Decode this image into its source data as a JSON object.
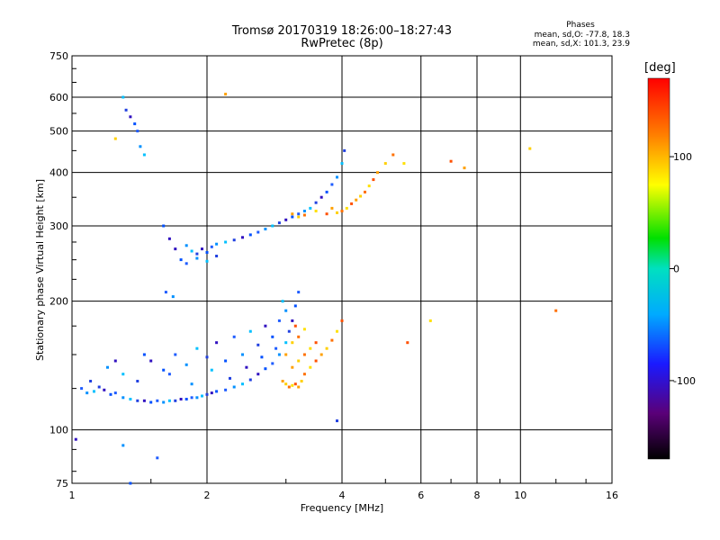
{
  "header": {
    "title_line1": "Tromsø 20170319 18:26:00–18:27:43",
    "title_line2": "RwPretec (8p)",
    "stats_title": "Phases",
    "stats_o": "mean, sd,O: -77.8, 18.3",
    "stats_x": "mean, sd,X: 101.3, 23.9"
  },
  "colorbar": {
    "unit": "deg",
    "ticks": [
      "100",
      "0",
      "-100"
    ]
  },
  "chart_data": {
    "type": "scatter",
    "title": "Tromsø 20170319 18:26:00–18:27:43",
    "subtitle": "RwPretec (8p)",
    "xlabel": "Frequency [MHz]",
    "ylabel": "Stationary phase Virtual Height [km]",
    "x_scale": "log",
    "y_scale": "log",
    "xlim": [
      1,
      16
    ],
    "ylim": [
      75,
      750
    ],
    "x_ticks": [
      "1",
      "2",
      "4",
      "6",
      "8",
      "10",
      "16"
    ],
    "y_ticks": [
      "75",
      "100",
      "200",
      "300",
      "400",
      "500",
      "600",
      "750"
    ],
    "grid": true,
    "colorbar_label": "[deg]",
    "colorbar_range": [
      -170,
      170
    ],
    "colors": {
      "o_mode": "#1e5cff",
      "x_mode": "#ffa000",
      "grid": "#000000"
    },
    "series": [
      {
        "name": "O",
        "points": [
          [
            1.05,
            125
          ],
          [
            1.08,
            122
          ],
          [
            1.12,
            123
          ],
          [
            1.15,
            126
          ],
          [
            1.18,
            124
          ],
          [
            1.22,
            121
          ],
          [
            1.25,
            122
          ],
          [
            1.3,
            119
          ],
          [
            1.35,
            118
          ],
          [
            1.4,
            117
          ],
          [
            1.45,
            117
          ],
          [
            1.5,
            116
          ],
          [
            1.55,
            117
          ],
          [
            1.6,
            116
          ],
          [
            1.65,
            117
          ],
          [
            1.7,
            117
          ],
          [
            1.75,
            118
          ],
          [
            1.8,
            118
          ],
          [
            1.85,
            119
          ],
          [
            1.9,
            119
          ],
          [
            1.95,
            120
          ],
          [
            2.0,
            121
          ],
          [
            2.05,
            122
          ],
          [
            2.1,
            123
          ],
          [
            2.2,
            124
          ],
          [
            2.3,
            126
          ],
          [
            2.4,
            128
          ],
          [
            2.5,
            131
          ],
          [
            2.6,
            135
          ],
          [
            2.7,
            139
          ],
          [
            2.8,
            143
          ],
          [
            2.9,
            150
          ],
          [
            3.0,
            160
          ],
          [
            3.05,
            170
          ],
          [
            3.1,
            180
          ],
          [
            3.15,
            195
          ],
          [
            3.2,
            210
          ],
          [
            1.2,
            140
          ],
          [
            1.3,
            135
          ],
          [
            1.4,
            130
          ],
          [
            1.5,
            145
          ],
          [
            1.6,
            138
          ],
          [
            1.7,
            150
          ],
          [
            1.8,
            142
          ],
          [
            1.9,
            155
          ],
          [
            2.0,
            148
          ],
          [
            2.1,
            160
          ],
          [
            2.2,
            145
          ],
          [
            2.3,
            165
          ],
          [
            2.4,
            150
          ],
          [
            2.5,
            170
          ],
          [
            2.6,
            158
          ],
          [
            2.7,
            175
          ],
          [
            2.8,
            165
          ],
          [
            2.9,
            180
          ],
          [
            3.0,
            190
          ],
          [
            2.95,
            200
          ],
          [
            1.1,
            130
          ],
          [
            1.25,
            145
          ],
          [
            1.45,
            150
          ],
          [
            1.65,
            135
          ],
          [
            1.85,
            128
          ],
          [
            2.05,
            138
          ],
          [
            2.25,
            132
          ],
          [
            2.45,
            140
          ],
          [
            2.65,
            148
          ],
          [
            2.85,
            155
          ],
          [
            1.8,
            270
          ],
          [
            1.85,
            262
          ],
          [
            1.9,
            258
          ],
          [
            1.95,
            265
          ],
          [
            2.0,
            260
          ],
          [
            2.05,
            268
          ],
          [
            2.1,
            272
          ],
          [
            2.2,
            275
          ],
          [
            2.3,
            278
          ],
          [
            2.4,
            282
          ],
          [
            2.5,
            286
          ],
          [
            2.6,
            290
          ],
          [
            2.7,
            295
          ],
          [
            2.8,
            300
          ],
          [
            2.9,
            305
          ],
          [
            3.0,
            310
          ],
          [
            3.1,
            315
          ],
          [
            3.2,
            320
          ],
          [
            3.3,
            325
          ],
          [
            3.4,
            330
          ],
          [
            3.5,
            340
          ],
          [
            3.6,
            350
          ],
          [
            3.7,
            360
          ],
          [
            3.8,
            375
          ],
          [
            3.9,
            390
          ],
          [
            4.0,
            420
          ],
          [
            4.05,
            450
          ],
          [
            1.7,
            265
          ],
          [
            1.75,
            250
          ],
          [
            1.8,
            245
          ],
          [
            1.9,
            252
          ],
          [
            2.0,
            248
          ],
          [
            2.1,
            255
          ],
          [
            1.65,
            280
          ],
          [
            1.6,
            300
          ],
          [
            1.62,
            210
          ],
          [
            1.68,
            205
          ],
          [
            1.3,
            600
          ],
          [
            1.32,
            560
          ],
          [
            1.35,
            540
          ],
          [
            1.38,
            520
          ],
          [
            1.4,
            500
          ],
          [
            1.42,
            460
          ],
          [
            1.45,
            440
          ],
          [
            3.9,
            105
          ],
          [
            1.02,
            95
          ],
          [
            1.35,
            75
          ],
          [
            1.55,
            86
          ],
          [
            1.3,
            92
          ]
        ]
      },
      {
        "name": "X",
        "points": [
          [
            2.95,
            130
          ],
          [
            3.0,
            128
          ],
          [
            3.05,
            126
          ],
          [
            3.1,
            127
          ],
          [
            3.15,
            128
          ],
          [
            3.2,
            126
          ],
          [
            3.25,
            130
          ],
          [
            3.3,
            135
          ],
          [
            3.4,
            140
          ],
          [
            3.5,
            145
          ],
          [
            3.6,
            150
          ],
          [
            3.7,
            155
          ],
          [
            3.8,
            162
          ],
          [
            3.9,
            170
          ],
          [
            4.0,
            180
          ],
          [
            3.1,
            140
          ],
          [
            3.2,
            145
          ],
          [
            3.3,
            150
          ],
          [
            3.4,
            155
          ],
          [
            3.5,
            160
          ],
          [
            3.0,
            150
          ],
          [
            3.1,
            160
          ],
          [
            3.2,
            165
          ],
          [
            3.3,
            172
          ],
          [
            3.15,
            175
          ],
          [
            3.1,
            320
          ],
          [
            3.2,
            315
          ],
          [
            3.3,
            318
          ],
          [
            3.5,
            325
          ],
          [
            3.7,
            320
          ],
          [
            3.8,
            330
          ],
          [
            3.9,
            322
          ],
          [
            4.0,
            325
          ],
          [
            4.1,
            330
          ],
          [
            4.2,
            338
          ],
          [
            4.3,
            345
          ],
          [
            4.4,
            352
          ],
          [
            4.5,
            360
          ],
          [
            4.6,
            372
          ],
          [
            4.7,
            385
          ],
          [
            4.8,
            400
          ],
          [
            5.0,
            420
          ],
          [
            5.2,
            440
          ],
          [
            5.5,
            420
          ],
          [
            7.0,
            425
          ],
          [
            7.5,
            410
          ],
          [
            10.5,
            455
          ],
          [
            12.0,
            190
          ],
          [
            6.3,
            180
          ],
          [
            5.6,
            160
          ],
          [
            2.2,
            610
          ],
          [
            1.25,
            480
          ]
        ]
      }
    ]
  }
}
